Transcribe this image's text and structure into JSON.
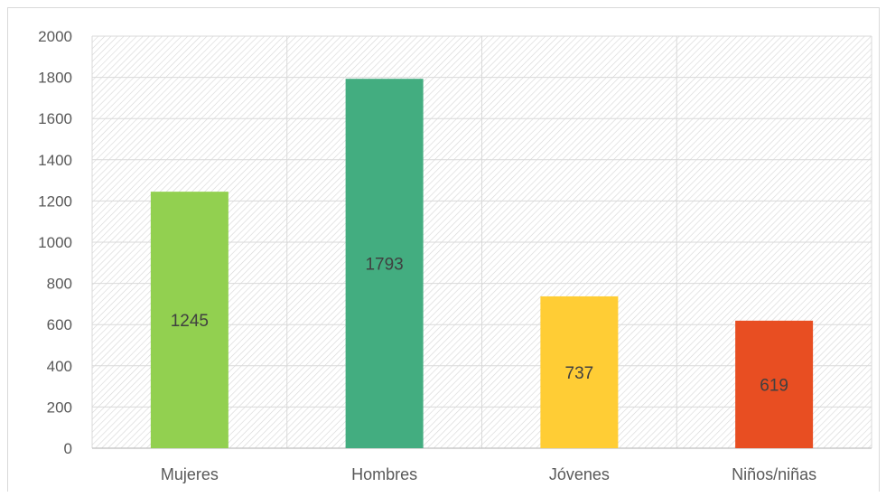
{
  "chart_data": {
    "type": "bar",
    "categories": [
      "Mujeres",
      "Hombres",
      "Jóvenes",
      "Niños/niñas"
    ],
    "values": [
      1245,
      1793,
      737,
      619
    ],
    "data_labels": [
      "1245",
      "1793",
      "737",
      "619"
    ],
    "bar_colors": [
      "#92d050",
      "#43ad80",
      "#ffcd35",
      "#e84e22"
    ],
    "ylim": [
      0,
      2000
    ],
    "yticks": [
      "0",
      "200",
      "400",
      "600",
      "800",
      "1000",
      "1200",
      "1400",
      "1600",
      "1800",
      "2000"
    ],
    "grid": true,
    "plot_background": "hatched-diagonal",
    "legend": "none"
  }
}
